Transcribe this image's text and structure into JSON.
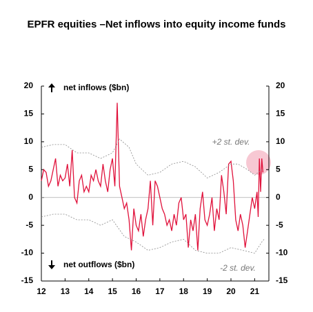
{
  "chart_data": {
    "type": "line",
    "title": "EPFR equities –Net inflows into equity income funds",
    "annotations": [
      "net inflows ($bn)",
      "net outflows ($bn)"
    ],
    "xlim": [
      12,
      21.6
    ],
    "xticks": [
      12,
      13,
      14,
      15,
      16,
      17,
      18,
      19,
      20,
      21
    ],
    "ylim": [
      -15,
      20
    ],
    "yticks": [
      20,
      15,
      10,
      5,
      0,
      -5,
      -10,
      -15
    ],
    "y2lim": [
      -15,
      20
    ],
    "y2ticks": [
      20,
      15,
      10,
      5,
      0,
      -5,
      -10,
      -15
    ],
    "series": [
      {
        "color": "#e0103a",
        "dash": false,
        "x": [
          12.0,
          12.1,
          12.2,
          12.3,
          12.4,
          12.5,
          12.6,
          12.7,
          12.8,
          12.9,
          13.0,
          13.1,
          13.2,
          13.3,
          13.4,
          13.5,
          13.6,
          13.7,
          13.8,
          13.9,
          14.0,
          14.1,
          14.2,
          14.3,
          14.4,
          14.5,
          14.6,
          14.7,
          14.8,
          14.9,
          15.0,
          15.1,
          15.2,
          15.3,
          15.4,
          15.5,
          15.6,
          15.7,
          15.8,
          15.9,
          16.0,
          16.1,
          16.2,
          16.3,
          16.4,
          16.5,
          16.6,
          16.7,
          16.8,
          16.9,
          17.0,
          17.1,
          17.2,
          17.3,
          17.4,
          17.5,
          17.6,
          17.7,
          17.8,
          17.9,
          18.0,
          18.1,
          18.2,
          18.3,
          18.4,
          18.5,
          18.6,
          18.7,
          18.8,
          18.9,
          19.0,
          19.1,
          19.2,
          19.3,
          19.4,
          19.5,
          19.6,
          19.7,
          19.8,
          19.9,
          20.0,
          20.1,
          20.2,
          20.3,
          20.4,
          20.5,
          20.6,
          20.7,
          20.8,
          20.9,
          21.0,
          21.1,
          21.15,
          21.2,
          21.25,
          21.3,
          21.35
        ],
        "values": [
          3,
          5,
          4.5,
          2,
          3,
          5,
          7,
          2,
          4,
          3,
          3.5,
          6,
          2,
          8.5,
          0,
          -1,
          3,
          4,
          1,
          2,
          1,
          4,
          3,
          5,
          3,
          2,
          6,
          3,
          1,
          5,
          7,
          2,
          17,
          2,
          0,
          -2,
          -1,
          -4,
          -9.5,
          -2,
          -5,
          -6,
          -3,
          -7,
          -4,
          -2,
          3,
          -5,
          3,
          2,
          0,
          -2,
          -3,
          -5,
          -4,
          -6,
          -3,
          -5,
          -1,
          0,
          -4,
          -3,
          -9,
          -4,
          -6,
          -3,
          -9.5,
          -2,
          1,
          -4,
          -5,
          -3,
          0,
          -6,
          -2,
          -4,
          4,
          1,
          -3,
          6,
          6.5,
          3,
          -4,
          -6,
          -3,
          -5,
          -9,
          -6,
          -3,
          0,
          -2,
          1,
          -3.5,
          7,
          1,
          7,
          4.5
        ]
      },
      {
        "name": "+2 st. dev.",
        "color": "#888888",
        "dash": true,
        "x": [
          12,
          12.5,
          13,
          13.5,
          14,
          14.5,
          15,
          15.3,
          15.7,
          16,
          16.5,
          17,
          17.5,
          18,
          18.5,
          19,
          19.5,
          20,
          20.3,
          20.7,
          21,
          21.3
        ],
        "values": [
          9,
          9.5,
          9.5,
          8,
          8,
          7,
          8,
          10.5,
          9,
          6,
          4,
          4.5,
          6,
          6.5,
          5.5,
          3.5,
          4.5,
          6,
          6,
          5,
          4,
          5
        ]
      },
      {
        "name": "-2 st. dev.",
        "color": "#888888",
        "dash": true,
        "x": [
          12,
          12.5,
          13,
          13.5,
          14,
          14.5,
          15,
          15.5,
          16,
          16.5,
          17,
          17.5,
          18,
          18.5,
          19,
          19.5,
          20,
          20.5,
          21,
          21.3,
          21.4
        ],
        "values": [
          -3.5,
          -3,
          -3,
          -4,
          -4,
          -5,
          -4,
          -7,
          -8,
          -9.5,
          -9,
          -8,
          -7.5,
          -9.5,
          -10,
          -10,
          -9,
          -9.5,
          -10,
          -8,
          -7.5
        ]
      }
    ]
  }
}
